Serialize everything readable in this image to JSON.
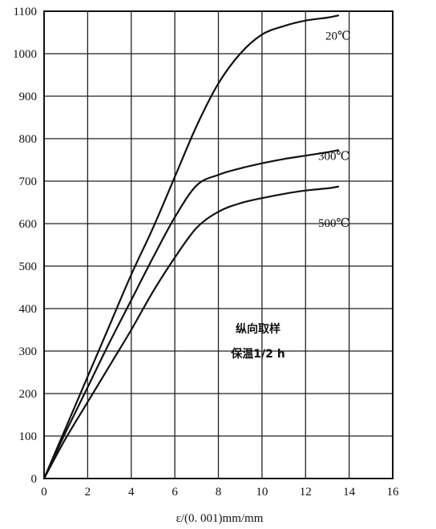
{
  "chart_data": {
    "type": "line",
    "title": "",
    "xlabel": "ε/(0. 001)mm/mm",
    "ylabel": "",
    "xlim": [
      0,
      16
    ],
    "ylim": [
      0,
      1100
    ],
    "xticks": [
      "0",
      "2",
      "4",
      "6",
      "8",
      "10",
      "12",
      "14",
      "16"
    ],
    "yticks": [
      "0",
      "100",
      "200",
      "300",
      "400",
      "500",
      "600",
      "700",
      "800",
      "900",
      "1000",
      "1100"
    ],
    "grid": true,
    "series": [
      {
        "name": "20℃",
        "x": [
          0,
          1,
          2,
          3,
          4,
          5,
          6,
          7,
          8,
          9,
          10,
          11,
          12,
          13,
          13.5
        ],
        "y": [
          0,
          120,
          240,
          360,
          480,
          590,
          710,
          830,
          930,
          1000,
          1045,
          1065,
          1078,
          1085,
          1090
        ]
      },
      {
        "name": "300℃",
        "x": [
          0,
          1,
          2,
          3,
          4,
          5,
          6,
          7,
          8,
          9,
          10,
          11,
          12,
          13,
          13.5
        ],
        "y": [
          0,
          110,
          215,
          320,
          420,
          520,
          615,
          690,
          715,
          730,
          742,
          752,
          760,
          768,
          773
        ]
      },
      {
        "name": "500℃",
        "x": [
          0,
          1,
          2,
          3,
          4,
          5,
          6,
          7,
          8,
          9,
          10,
          11,
          12,
          13,
          13.5
        ],
        "y": [
          0,
          95,
          180,
          265,
          350,
          440,
          520,
          590,
          628,
          648,
          660,
          670,
          678,
          683,
          687
        ]
      }
    ],
    "annotations": [
      "纵向取样",
      "保温1/2 h"
    ]
  }
}
